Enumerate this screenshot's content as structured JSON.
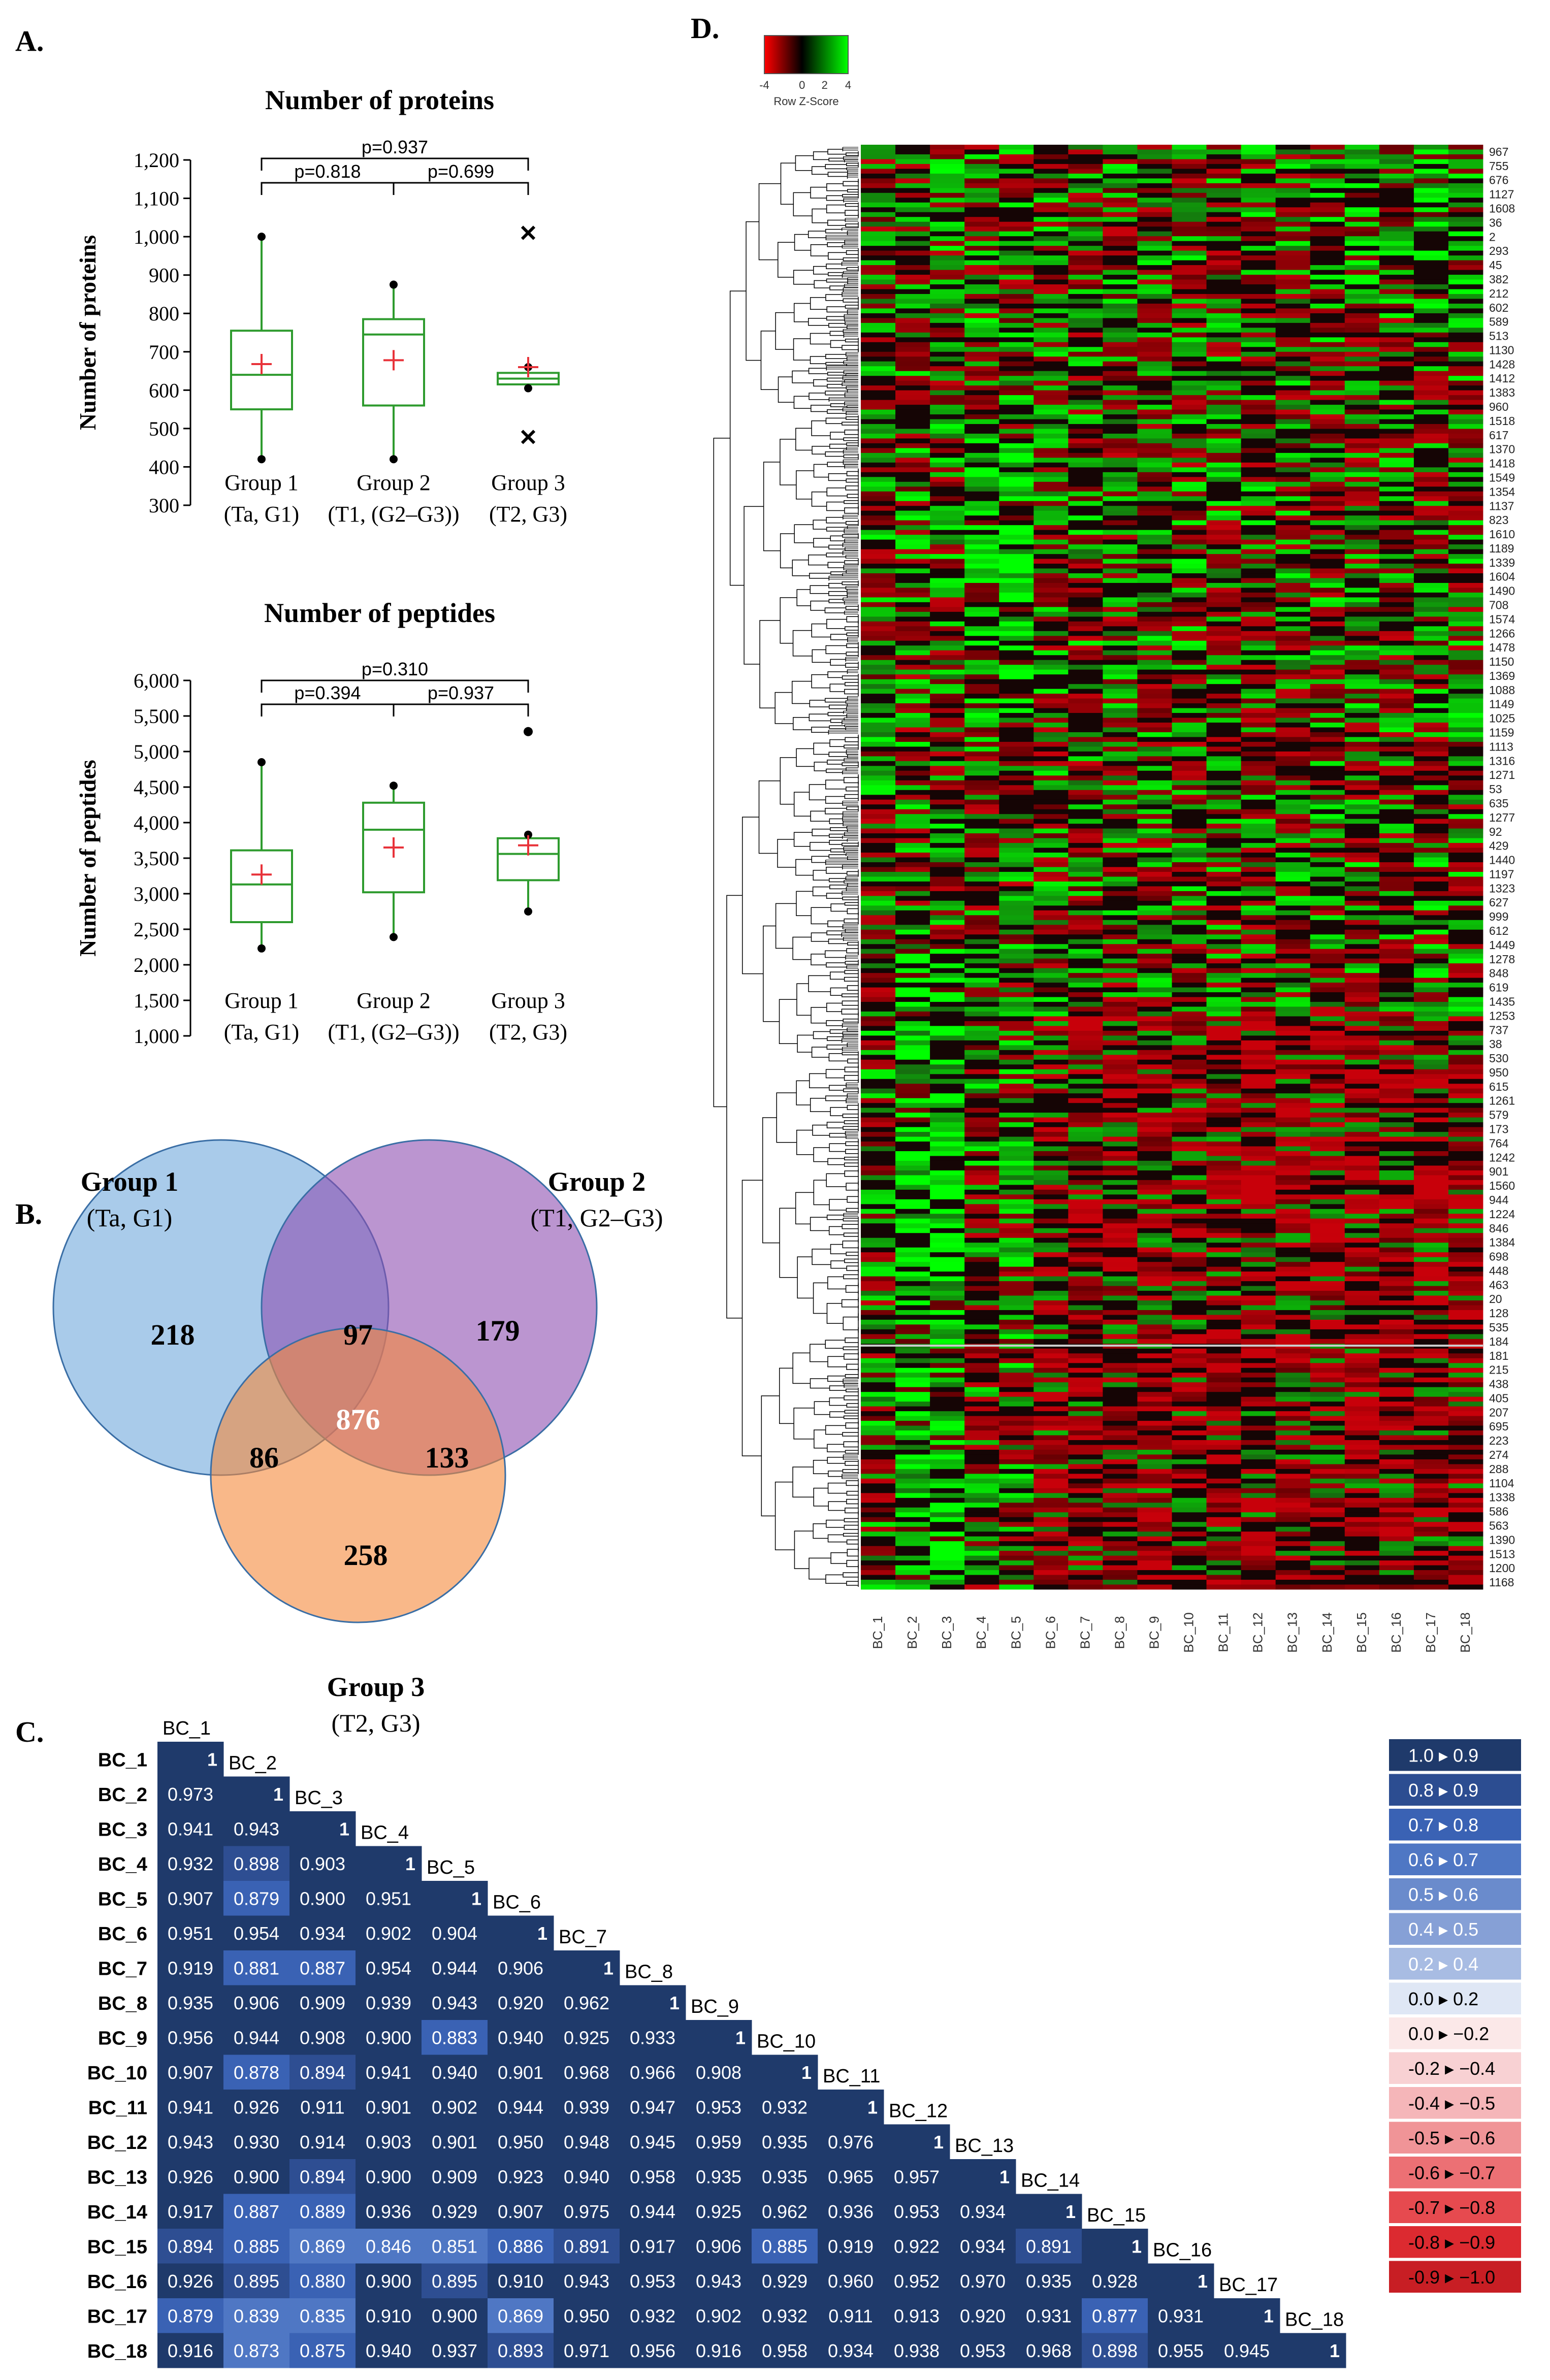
{
  "panel_labels": {
    "a": "A.",
    "b": "B.",
    "c": "C.",
    "d": "D."
  },
  "chart_data": [
    {
      "id": "proteins",
      "type": "boxplot",
      "title": "Number of proteins",
      "ylabel": "Number of proteins",
      "ylim": [
        300,
        1200
      ],
      "yticks": [
        300,
        400,
        500,
        600,
        700,
        800,
        900,
        1000,
        1100,
        1200
      ],
      "ytick_labels": [
        "300",
        "400",
        "500",
        "600",
        "700",
        "800",
        "900",
        "1,000",
        "1,100",
        "1,200"
      ],
      "groups": [
        {
          "name": "Group 1",
          "sub": "(Ta, G1)",
          "whisker_low": 420,
          "q1": 550,
          "median": 640,
          "q3": 755,
          "whisker_high": 1000,
          "mean": 668,
          "outliers": []
        },
        {
          "name": "Group 2",
          "sub": "(T1, (G2–G3))",
          "whisker_low": 420,
          "q1": 560,
          "median": 745,
          "q3": 785,
          "whisker_high": 875,
          "mean": 678,
          "outliers": []
        },
        {
          "name": "Group 3",
          "sub": "(T2, G3)",
          "whisker_low": 605,
          "q1": 615,
          "median": 630,
          "q3": 645,
          "whisker_high": 660,
          "mean": 660,
          "outliers": [
            1010,
            478
          ]
        }
      ],
      "comparisons": [
        {
          "pair": [
            0,
            1
          ],
          "label": "p=0.818"
        },
        {
          "pair": [
            1,
            2
          ],
          "label": "p=0.699"
        },
        {
          "pair": [
            0,
            2
          ],
          "label": "p=0.937"
        }
      ]
    },
    {
      "id": "peptides",
      "type": "boxplot",
      "title": "Number of peptides",
      "ylabel": "Number of peptides",
      "ylim": [
        1000,
        6000
      ],
      "yticks": [
        1000,
        1500,
        2000,
        2500,
        3000,
        3500,
        4000,
        4500,
        5000,
        5500,
        6000
      ],
      "ytick_labels": [
        "1,000",
        "1,500",
        "2,000",
        "2,500",
        "3,000",
        "3,500",
        "4,000",
        "4,500",
        "5,000",
        "5,500",
        "6,000"
      ],
      "groups": [
        {
          "name": "Group 1",
          "sub": "(Ta, G1)",
          "whisker_low": 2230,
          "q1": 2600,
          "median": 3130,
          "q3": 3610,
          "whisker_high": 4850,
          "mean": 3270,
          "outliers": []
        },
        {
          "name": "Group 2",
          "sub": "(T1, (G2–G3))",
          "whisker_low": 2390,
          "q1": 3020,
          "median": 3900,
          "q3": 4280,
          "whisker_high": 4520,
          "mean": 3650,
          "outliers": []
        },
        {
          "name": "Group 3",
          "sub": "(T2, G3)",
          "whisker_low": 2750,
          "q1": 3190,
          "median": 3560,
          "q3": 3780,
          "whisker_high": 3830,
          "mean": 3680,
          "outliers": [
            5280
          ]
        }
      ],
      "comparisons": [
        {
          "pair": [
            0,
            1
          ],
          "label": "p=0.394"
        },
        {
          "pair": [
            1,
            2
          ],
          "label": "p=0.937"
        },
        {
          "pair": [
            0,
            2
          ],
          "label": "p=0.310"
        }
      ]
    },
    {
      "id": "venn",
      "type": "venn",
      "sets": [
        {
          "name": "Group 1",
          "sub": "(Ta, G1)",
          "color": "#6fa8dc"
        },
        {
          "name": "Group 2",
          "sub": "(T1, G2–G3)",
          "color": "#8e4fb0"
        },
        {
          "name": "Group 3",
          "sub": "(T2, G3)",
          "color": "#f5893b"
        }
      ],
      "regions": {
        "only1": "218",
        "only2": "179",
        "only3": "258",
        "g12": "97",
        "g13": "86",
        "g23": "133",
        "g123": "876"
      }
    },
    {
      "id": "correlation",
      "type": "heatmap",
      "labels": [
        "BC_1",
        "BC_2",
        "BC_3",
        "BC_4",
        "BC_5",
        "BC_6",
        "BC_7",
        "BC_8",
        "BC_9",
        "BC_10",
        "BC_11",
        "BC_12",
        "BC_13",
        "BC_14",
        "BC_15",
        "BC_16",
        "BC_17",
        "BC_18"
      ],
      "values": [
        [
          "1"
        ],
        [
          "0.973",
          "1"
        ],
        [
          "0.941",
          "0.943",
          "1"
        ],
        [
          "0.932",
          "0.898",
          "0.903",
          "1"
        ],
        [
          "0.907",
          "0.879",
          "0.900",
          "0.951",
          "1"
        ],
        [
          "0.951",
          "0.954",
          "0.934",
          "0.902",
          "0.904",
          "1"
        ],
        [
          "0.919",
          "0.881",
          "0.887",
          "0.954",
          "0.944",
          "0.906",
          "1"
        ],
        [
          "0.935",
          "0.906",
          "0.909",
          "0.939",
          "0.943",
          "0.920",
          "0.962",
          "1"
        ],
        [
          "0.956",
          "0.944",
          "0.908",
          "0.900",
          "0.883",
          "0.940",
          "0.925",
          "0.933",
          "1"
        ],
        [
          "0.907",
          "0.878",
          "0.894",
          "0.941",
          "0.940",
          "0.901",
          "0.968",
          "0.966",
          "0.908",
          "1"
        ],
        [
          "0.941",
          "0.926",
          "0.911",
          "0.901",
          "0.902",
          "0.944",
          "0.939",
          "0.947",
          "0.953",
          "0.932",
          "1"
        ],
        [
          "0.943",
          "0.930",
          "0.914",
          "0.903",
          "0.901",
          "0.950",
          "0.948",
          "0.945",
          "0.959",
          "0.935",
          "0.976",
          "1"
        ],
        [
          "0.926",
          "0.900",
          "0.894",
          "0.900",
          "0.909",
          "0.923",
          "0.940",
          "0.958",
          "0.935",
          "0.935",
          "0.965",
          "0.957",
          "1"
        ],
        [
          "0.917",
          "0.887",
          "0.889",
          "0.936",
          "0.929",
          "0.907",
          "0.975",
          "0.944",
          "0.925",
          "0.962",
          "0.936",
          "0.953",
          "0.934",
          "1"
        ],
        [
          "0.894",
          "0.885",
          "0.869",
          "0.846",
          "0.851",
          "0.886",
          "0.891",
          "0.917",
          "0.906",
          "0.885",
          "0.919",
          "0.922",
          "0.934",
          "0.891",
          "1"
        ],
        [
          "0.926",
          "0.895",
          "0.880",
          "0.900",
          "0.895",
          "0.910",
          "0.943",
          "0.953",
          "0.943",
          "0.929",
          "0.960",
          "0.952",
          "0.970",
          "0.935",
          "0.928",
          "1"
        ],
        [
          "0.879",
          "0.839",
          "0.835",
          "0.910",
          "0.900",
          "0.869",
          "0.950",
          "0.932",
          "0.902",
          "0.932",
          "0.911",
          "0.913",
          "0.920",
          "0.931",
          "0.877",
          "0.931",
          "1"
        ],
        [
          "0.916",
          "0.873",
          "0.875",
          "0.940",
          "0.937",
          "0.893",
          "0.971",
          "0.956",
          "0.916",
          "0.958",
          "0.934",
          "0.938",
          "0.953",
          "0.968",
          "0.898",
          "0.955",
          "0.945",
          "1"
        ]
      ],
      "legend": [
        {
          "label": "1.0 ▸ 0.9",
          "color": "#1f3a6b"
        },
        {
          "label": "0.8 ▸ 0.9",
          "color": "#2c4d91"
        },
        {
          "label": "0.7 ▸ 0.8",
          "color": "#3a62b4"
        },
        {
          "label": "0.6 ▸ 0.7",
          "color": "#4f77c4"
        },
        {
          "label": "0.5 ▸ 0.6",
          "color": "#6a8bcc"
        },
        {
          "label": "0.4 ▸ 0.5",
          "color": "#86a0d6"
        },
        {
          "label": "0.2 ▸ 0.4",
          "color": "#a8bce3"
        },
        {
          "label": "0.0 ▸ 0.2",
          "color": "#dfe7f5"
        },
        {
          "label": "0.0 ▸ −0.2",
          "color": "#fbe8e8"
        },
        {
          "label": "-0.2 ▸ −0.4",
          "color": "#f8d1d3"
        },
        {
          "label": "-0.4 ▸ −0.5",
          "color": "#f5b6b9"
        },
        {
          "label": "-0.5 ▸ −0.6",
          "color": "#f09497"
        },
        {
          "label": "-0.6 ▸ −0.7",
          "color": "#ec7074"
        },
        {
          "label": "-0.7 ▸ −0.8",
          "color": "#e64a4f"
        },
        {
          "label": "-0.8 ▸ −0.9",
          "color": "#dc2a30"
        },
        {
          "label": "-0.9 ▸ −1.0",
          "color": "#c81e24"
        }
      ]
    },
    {
      "id": "cluster_heatmap",
      "type": "heatmap",
      "color_key": {
        "title": "Row Z-Score",
        "ticks": [
          "-4",
          "0",
          "2",
          "4"
        ]
      },
      "columns": [
        "BC_1",
        "BC_2",
        "BC_3",
        "BC_4",
        "BC_5",
        "BC_6",
        "BC_7",
        "BC_8",
        "BC_9",
        "BC_10",
        "BC_11",
        "BC_12",
        "BC_13",
        "BC_14",
        "BC_15",
        "BC_16",
        "BC_17",
        "BC_18"
      ],
      "row_labels": [
        "967",
        "755",
        "676",
        "1127",
        "1608",
        "36",
        "2",
        "293",
        "45",
        "382",
        "212",
        "602",
        "589",
        "513",
        "1130",
        "1428",
        "1412",
        "1383",
        "960",
        "1518",
        "617",
        "1370",
        "1418",
        "1549",
        "1354",
        "1137",
        "823",
        "1610",
        "1189",
        "1339",
        "1604",
        "1490",
        "708",
        "1574",
        "1266",
        "1478",
        "1150",
        "1369",
        "1088",
        "1149",
        "1025",
        "1159",
        "1113",
        "1316",
        "1271",
        "53",
        "635",
        "1277",
        "92",
        "429",
        "1440",
        "1197",
        "1323",
        "627",
        "999",
        "612",
        "1449",
        "1278",
        "848",
        "619",
        "1435",
        "1253",
        "737",
        "38",
        "530",
        "950",
        "615",
        "1261",
        "579",
        "173",
        "764",
        "1242",
        "901",
        "1560",
        "944",
        "1224",
        "846",
        "1384",
        "698",
        "448",
        "463",
        "20",
        "128",
        "535",
        "184",
        "181",
        "215",
        "438",
        "405",
        "207",
        "695",
        "223",
        "274",
        "288",
        "1104",
        "1338",
        "586",
        "563",
        "1390",
        "1513",
        "1200",
        "1168"
      ]
    }
  ]
}
